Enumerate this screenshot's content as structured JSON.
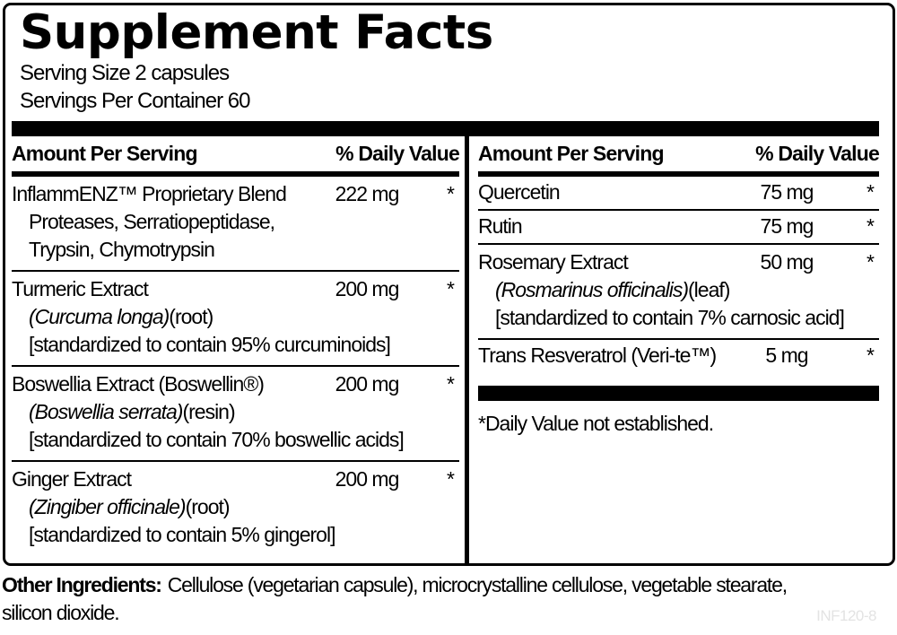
{
  "panel": {
    "title": "Supplement Facts",
    "serving_size": "Serving Size 2 capsules",
    "servings_per_container": "Servings Per Container 60",
    "headers": {
      "amount": "Amount Per Serving",
      "daily_value": "% Daily Value"
    },
    "left_column": {
      "rows": [
        {
          "name": "InflammENZ™ Proprietary Blend",
          "amount": "222 mg",
          "dv": "*",
          "subs": [
            {
              "regular": "Proteases, Serratiopeptidase,"
            },
            {
              "regular": "Trypsin, Chymotrypsin"
            }
          ]
        },
        {
          "name": "Turmeric Extract",
          "amount": "200 mg",
          "dv": "*",
          "subs": [
            {
              "italic": "(Curcuma longa)",
              "regular": "(root)"
            },
            {
              "regular": "[standardized to contain 95% curcuminoids]"
            }
          ]
        },
        {
          "name": "Boswellia Extract (Boswellin®)",
          "amount": "200 mg",
          "dv": "*",
          "subs": [
            {
              "italic": "(Boswellia serrata)",
              "regular": "(resin)"
            },
            {
              "regular": "[standardized to contain 70% boswellic acids]"
            }
          ]
        },
        {
          "name": "Ginger Extract",
          "amount": "200 mg",
          "dv": "*",
          "subs": [
            {
              "italic": "(Zingiber officinale)",
              "regular": "(root)"
            },
            {
              "regular": "[standardized to contain 5% gingerol]"
            }
          ]
        }
      ]
    },
    "right_column": {
      "rows": [
        {
          "name": "Quercetin",
          "amount": "75 mg",
          "dv": "*"
        },
        {
          "name": "Rutin",
          "amount": "75 mg",
          "dv": "*"
        },
        {
          "name": "Rosemary Extract",
          "amount": "50 mg",
          "dv": "*",
          "subs": [
            {
              "italic": "(Rosmarinus officinalis)",
              "regular": "(leaf)"
            },
            {
              "regular": "[standardized to contain 7% carnosic acid]"
            }
          ]
        },
        {
          "name": "Trans Resveratrol (Veri-te™)",
          "amount": "5 mg",
          "dv": "*"
        }
      ],
      "footnote": "*Daily Value not established."
    }
  },
  "footer": {
    "other_ingredients_label": "Other Ingredients:",
    "other_ingredients_line1": "Cellulose (vegetarian capsule), microcrystalline cellulose, vegetable stearate,",
    "other_ingredients_line2": "silicon dioxide.",
    "product_code": "INF120-8"
  }
}
